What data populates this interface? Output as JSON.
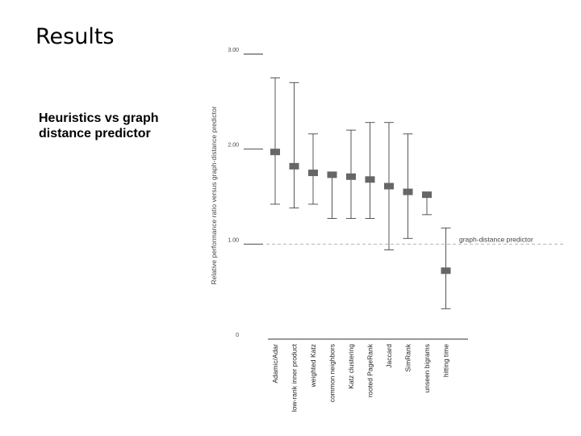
{
  "slide": {
    "title": "Results",
    "subtitle": "Heuristics vs graph distance predictor"
  },
  "chart_data": {
    "type": "errorbar",
    "ylabel": "Relative performance ratio versus graph-distance predictor",
    "ylim": [
      0,
      3
    ],
    "yticks": [
      {
        "value": 0,
        "label": "0"
      },
      {
        "value": 1,
        "label": "1.00"
      },
      {
        "value": 2,
        "label": "2.00"
      },
      {
        "value": 3,
        "label": "3.00"
      }
    ],
    "reference": {
      "value": 1.0,
      "label": "graph-distance predictor"
    },
    "categories": [
      "Adamic/Adar",
      "low-rank inner product",
      "weighted Katz",
      "common neighbors",
      "Katz clustering",
      "rooted PageRank",
      "Jaccard",
      "SimRank",
      "unseen bigrams",
      "hitting time"
    ],
    "values": [
      1.97,
      1.82,
      1.75,
      1.73,
      1.71,
      1.68,
      1.61,
      1.55,
      1.52,
      0.72
    ],
    "upper": [
      2.75,
      2.7,
      2.16,
      1.73,
      2.2,
      2.28,
      2.28,
      2.16,
      1.52,
      1.17
    ],
    "lower": [
      1.42,
      1.38,
      1.42,
      1.27,
      1.27,
      1.27,
      0.94,
      1.06,
      1.31,
      0.32
    ]
  }
}
